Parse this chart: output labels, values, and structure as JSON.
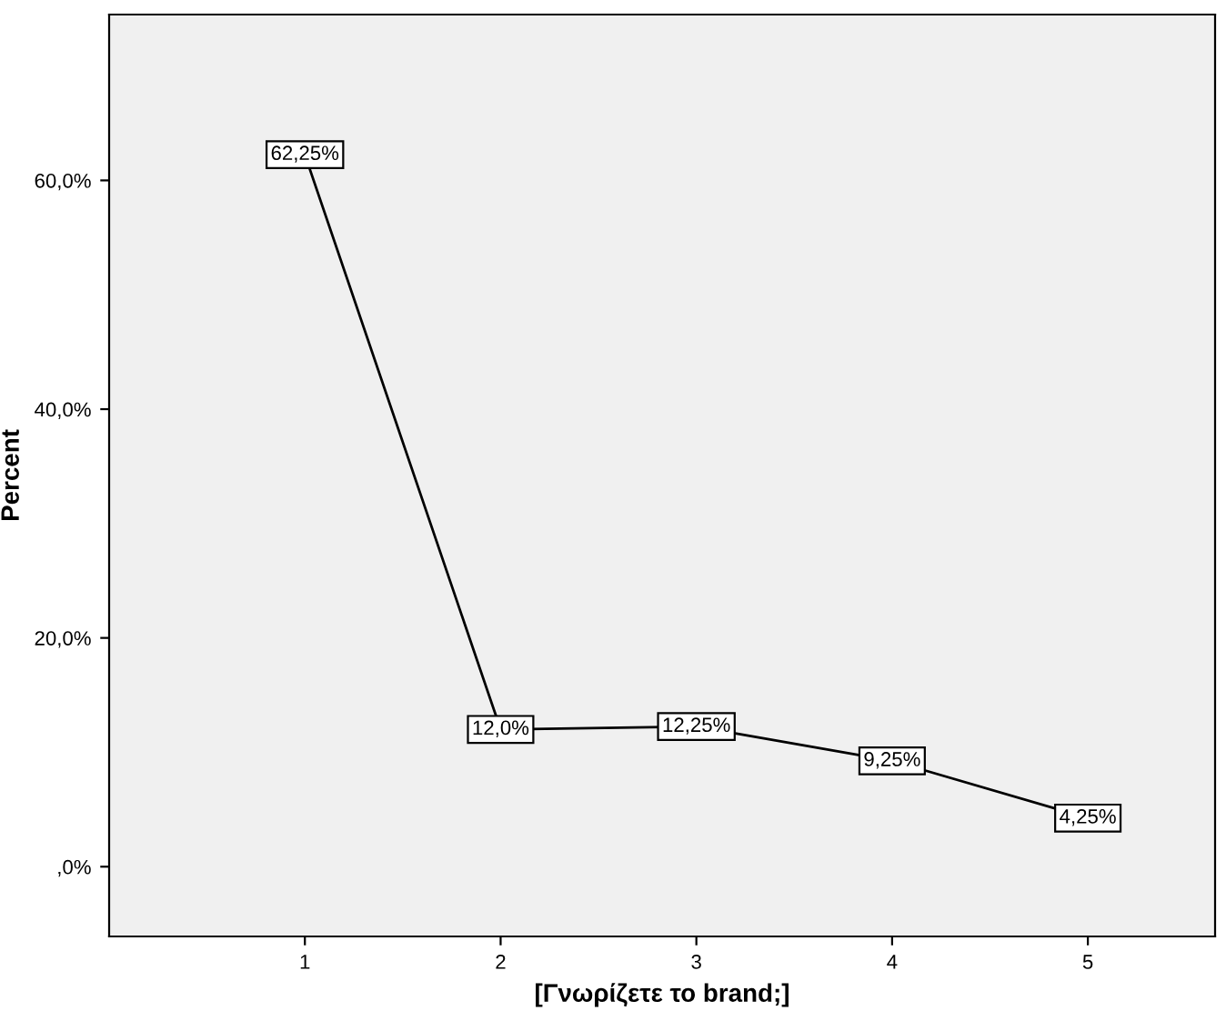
{
  "chart_data": {
    "type": "line",
    "xlabel": "[Γνωρίζετε το brand;]",
    "ylabel": "Percent",
    "x": [
      1,
      2,
      3,
      4,
      5
    ],
    "values": [
      62.25,
      12.0,
      12.25,
      9.25,
      4.25
    ],
    "value_labels": [
      "62,25%",
      "12,0%",
      "12,25%",
      "9,25%",
      "4,25%"
    ],
    "color": "#000000",
    "xlim": [
      0,
      5.65
    ],
    "ylim": [
      -6.1,
      74.5
    ],
    "xticks": [
      1,
      2,
      3,
      4,
      5
    ],
    "yticks": [
      {
        "value": 0,
        "label": ",0%"
      },
      {
        "value": 20,
        "label": "20,0%"
      },
      {
        "value": 40,
        "label": "40,0%"
      },
      {
        "value": 60,
        "label": "60,0%"
      }
    ],
    "grid": false,
    "marker": "square",
    "line_style": "solid"
  }
}
